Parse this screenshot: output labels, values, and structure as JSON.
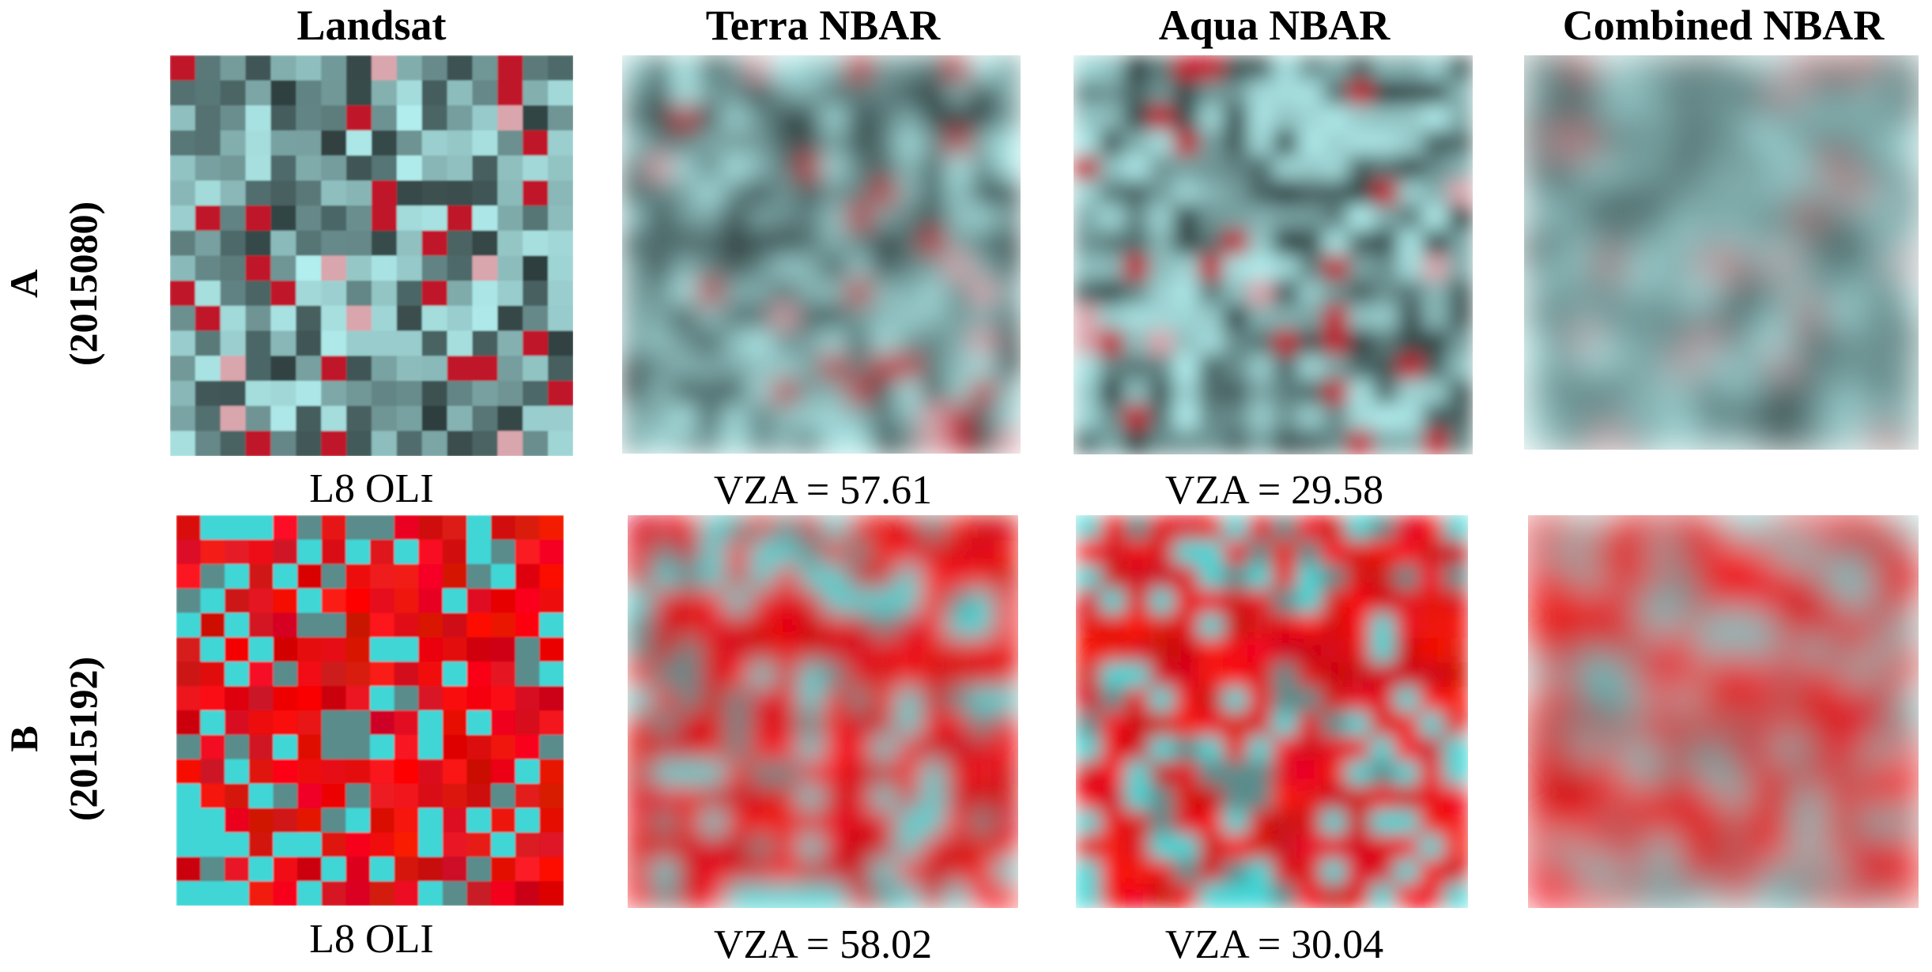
{
  "headers": [
    "Landsat",
    "Terra NBAR",
    "Aqua NBAR",
    "Combined NBAR"
  ],
  "rows": [
    {
      "label": "A",
      "date": "(2015080)",
      "captions": [
        "L8 OLI",
        "VZA = 57.61",
        "VZA = 29.58"
      ]
    },
    {
      "label": "B",
      "date": "(2015192)",
      "captions": [
        "L8 OLI",
        "VZA = 58.02",
        "VZA = 30.04"
      ]
    }
  ]
}
